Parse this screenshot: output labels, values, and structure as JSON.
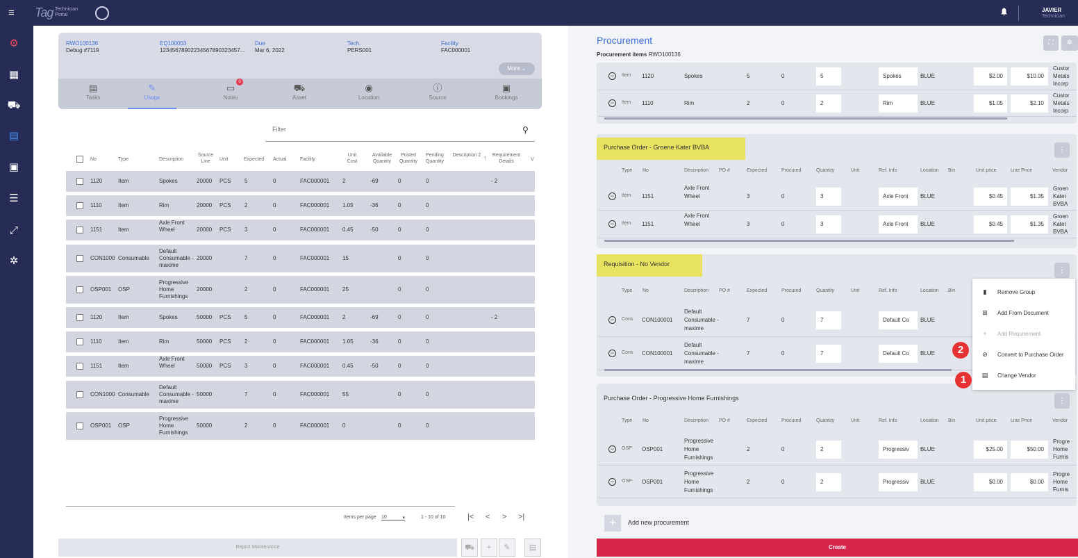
{
  "topbar": {
    "logo_main": "Tag",
    "logo_sub": "Technician Portal",
    "user": "JAVIER",
    "role": "Technician"
  },
  "header": {
    "fields": [
      {
        "key": "RWO100136",
        "value": "Debug #7119"
      },
      {
        "key": "EQ100003",
        "value": "12345678902234567890323457..."
      },
      {
        "key": "Due",
        "value": "Mar 6, 2022"
      },
      {
        "key": "Tech.",
        "value": "PERS001"
      },
      {
        "key": "Facility",
        "value": "FAC000001"
      }
    ],
    "more": "More ⌄"
  },
  "tabs": [
    {
      "label": "Tasks",
      "icon": "clipboard-icon"
    },
    {
      "label": "Usage",
      "icon": "pen-icon"
    },
    {
      "label": "Notes",
      "icon": "notes-icon",
      "badge": "0"
    },
    {
      "label": "Asset",
      "icon": "forklift-icon"
    },
    {
      "label": "Location",
      "icon": "pin-icon"
    },
    {
      "label": "Source",
      "icon": "info-icon"
    },
    {
      "label": "Bookings",
      "icon": "briefcase-icon"
    }
  ],
  "filter": {
    "placeholder": "Filter"
  },
  "usage_table": {
    "headers": [
      "No",
      "Type",
      "Description",
      "Source Line",
      "Unit",
      "Expected",
      "Actual",
      "Facility",
      "Unit Cost",
      "Available Quantity",
      "Posted Quantity",
      "Pending Quantity",
      "Description 2",
      "Requirement Details",
      "V"
    ],
    "rows": [
      {
        "no": "1120",
        "type": "Item",
        "desc": "Spokes",
        "src": "20000",
        "unit": "PCS",
        "exp": "5",
        "act": "0",
        "fac": "FAC000001",
        "cost": "2",
        "avail": "-69",
        "posted": "0",
        "pend": "0",
        "req": "- 2"
      },
      {
        "no": "1110",
        "type": "Item",
        "desc": "Rim",
        "src": "20000",
        "unit": "PCS",
        "exp": "2",
        "act": "0",
        "fac": "FAC000001",
        "cost": "1.05",
        "avail": "-36",
        "posted": "0",
        "pend": "0",
        "req": ""
      },
      {
        "no": "1151",
        "type": "Item",
        "desc": "Axle Front Wheel",
        "src": "20000",
        "unit": "PCS",
        "exp": "3",
        "act": "0",
        "fac": "FAC000001",
        "cost": "0.45",
        "avail": "-50",
        "posted": "0",
        "pend": "0",
        "req": ""
      },
      {
        "no": "CON1000",
        "type": "Consumable",
        "desc": "Default Consumable - maxime",
        "src": "20000",
        "unit": "",
        "exp": "7",
        "act": "0",
        "fac": "FAC000001",
        "cost": "15",
        "avail": "",
        "posted": "0",
        "pend": "0",
        "req": ""
      },
      {
        "no": "OSP001",
        "type": "OSP",
        "desc": "Progressive Home Furnishings",
        "src": "20000",
        "unit": "",
        "exp": "2",
        "act": "0",
        "fac": "FAC000001",
        "cost": "25",
        "avail": "",
        "posted": "0",
        "pend": "0",
        "req": ""
      },
      {
        "no": "1120",
        "type": "Item",
        "desc": "Spokes",
        "src": "50000",
        "unit": "PCS",
        "exp": "5",
        "act": "0",
        "fac": "FAC000001",
        "cost": "2",
        "avail": "-69",
        "posted": "0",
        "pend": "0",
        "req": "- 2"
      },
      {
        "no": "1110",
        "type": "Item",
        "desc": "Rim",
        "src": "50000",
        "unit": "PCS",
        "exp": "2",
        "act": "0",
        "fac": "FAC000001",
        "cost": "1.05",
        "avail": "-36",
        "posted": "0",
        "pend": "0",
        "req": ""
      },
      {
        "no": "1151",
        "type": "Item",
        "desc": "Axle Front Wheel",
        "src": "50000",
        "unit": "PCS",
        "exp": "3",
        "act": "0",
        "fac": "FAC000001",
        "cost": "0.45",
        "avail": "-50",
        "posted": "0",
        "pend": "0",
        "req": ""
      },
      {
        "no": "CON1000",
        "type": "Consumable",
        "desc": "Default Consumable - maxime",
        "src": "50000",
        "unit": "",
        "exp": "7",
        "act": "0",
        "fac": "FAC000001",
        "cost": "55",
        "avail": "",
        "posted": "0",
        "pend": "0",
        "req": ""
      },
      {
        "no": "OSP001",
        "type": "OSP",
        "desc": "Progressive Home Furnishings",
        "src": "50000",
        "unit": "",
        "exp": "2",
        "act": "0",
        "fac": "FAC000001",
        "cost": "0",
        "avail": "",
        "posted": "0",
        "pend": "0",
        "req": ""
      }
    ]
  },
  "pagination": {
    "items_label": "Items per page",
    "per_page": "10",
    "range": "1 - 10 of 10"
  },
  "footer_left": {
    "report": "Report Maintenance"
  },
  "procurement": {
    "title": "Procurement",
    "subtitle_label": "Procurement items",
    "subtitle_value": "RWO100136",
    "col_headers": [
      "Type",
      "No",
      "Description",
      "PO #",
      "Expected",
      "Procured",
      "Quantity",
      "Unit",
      "Ref. Info",
      "Location",
      "Bin",
      "Unit price",
      "Line Price",
      "Vendor"
    ],
    "top_rows": [
      {
        "type": "Item",
        "no": "1120",
        "desc": "Spokes",
        "exp": "5",
        "proc": "0",
        "qty": "5",
        "ref": "Spokes",
        "loc": "BLUE",
        "price": "$2.00",
        "line": "$10.00",
        "vendor": "Custor Metals Incorp"
      },
      {
        "type": "Item",
        "no": "1110",
        "desc": "Rim",
        "exp": "2",
        "proc": "0",
        "qty": "2",
        "ref": "Rim",
        "loc": "BLUE",
        "price": "$1.05",
        "line": "$2.10",
        "vendor": "Custor Metals Incorp"
      }
    ],
    "groups": [
      {
        "label": "Purchase Order - Groene Kater BVBA",
        "rows": [
          {
            "type": "Item",
            "no": "1151",
            "desc": "Axle Front Wheel",
            "exp": "3",
            "proc": "0",
            "qty": "3",
            "ref": "Axle Front",
            "loc": "BLUE",
            "price": "$0.45",
            "line": "$1.35",
            "vendor": "Groen Kater BVBA"
          },
          {
            "type": "Item",
            "no": "1151",
            "desc": "Axle Front Wheel",
            "exp": "3",
            "proc": "0",
            "qty": "3",
            "ref": "Axle Front",
            "loc": "BLUE",
            "price": "$0.45",
            "line": "$1.35",
            "vendor": "Groen Kater BVBA"
          }
        ]
      },
      {
        "label": "Requisition - No Vendor",
        "rows": [
          {
            "type": "Cons",
            "no": "CON100001",
            "desc": "Default Consumable - maxime",
            "exp": "7",
            "proc": "0",
            "qty": "7",
            "ref": "Default Co",
            "loc": "BLUE",
            "price": "",
            "line": "",
            "vendor": ""
          },
          {
            "type": "Cons",
            "no": "CON100001",
            "desc": "Default Consumable - maxime",
            "exp": "7",
            "proc": "0",
            "qty": "7",
            "ref": "Default Co",
            "loc": "BLUE",
            "price": "",
            "line": "",
            "vendor": ""
          }
        ]
      },
      {
        "label": "Purchase Order - Progressive Home Furnishings",
        "rows": [
          {
            "type": "OSP",
            "no": "OSP001",
            "desc": "Progressive Home Furnishings",
            "exp": "2",
            "proc": "0",
            "qty": "2",
            "ref": "Progressiv",
            "loc": "BLUE",
            "price": "$25.00",
            "line": "$50.00",
            "vendor": "Progre Home Furnis"
          },
          {
            "type": "OSP",
            "no": "OSP001",
            "desc": "Progressive Home Furnishings",
            "exp": "2",
            "proc": "0",
            "qty": "2",
            "ref": "Progressiv",
            "loc": "BLUE",
            "price": "$0.00",
            "line": "$0.00",
            "vendor": "Progre Home Furnis"
          }
        ]
      }
    ],
    "menu": [
      "Remove Group",
      "Add From Document",
      "Add Requirement",
      "Convert to Purchase Order",
      "Change Vendor"
    ],
    "callouts": [
      "2",
      "1"
    ],
    "add_new": "Add new procurement",
    "create": "Create"
  }
}
